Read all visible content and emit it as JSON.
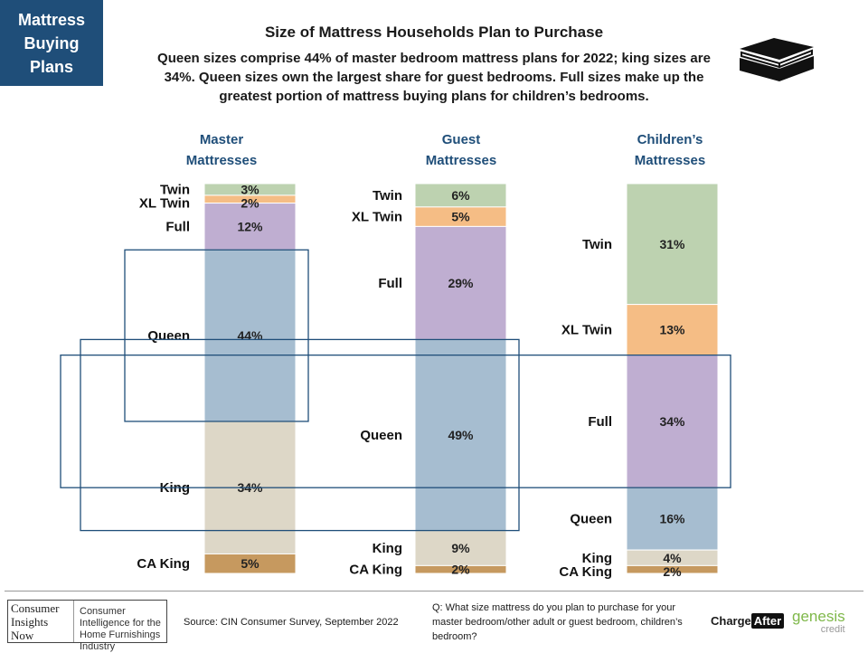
{
  "corner_label": "Mattress Buying Plans",
  "title": "Size of Mattress Households  Plan to Purchase",
  "subtitle": "Queen sizes comprise 44% of master bedroom mattress plans for 2022; king sizes are 34%. Queen sizes own the largest share for guest bedrooms. Full sizes make up the greatest portion of mattress buying plans for children’s bedrooms.",
  "icon": "mattress-icon",
  "chart_data": {
    "type": "bar",
    "stacked": true,
    "categories": [
      "Twin",
      "XL Twin",
      "Full",
      "Queen",
      "King",
      "CA King"
    ],
    "columns": [
      {
        "name": "Master Mattresses",
        "values": [
          3,
          2,
          12,
          44,
          34,
          5
        ],
        "labels": [
          "3%",
          "2%",
          "12%",
          "44%",
          "34%",
          "5%"
        ],
        "highlight": "Queen"
      },
      {
        "name": "Guest Mattresses",
        "values": [
          6,
          5,
          29,
          49,
          9,
          2
        ],
        "labels": [
          "6%",
          "5%",
          "29%",
          "49%",
          "9%",
          "2%"
        ],
        "highlight": "Queen"
      },
      {
        "name": "Children’s Mattresses",
        "values": [
          31,
          13,
          34,
          16,
          4,
          2
        ],
        "labels": [
          "31%",
          "13%",
          "34%",
          "16%",
          "4%",
          "2%"
        ],
        "highlight": "Full"
      }
    ],
    "colors": [
      "#bdd2b0",
      "#f5bd85",
      "#bfaed1",
      "#a6bdd0",
      "#ddd7c7",
      "#c6995f"
    ],
    "highlight_border": "#1f4e79"
  },
  "footer": {
    "source": "Source: CIN Consumer Survey, September  2022",
    "question": "Q: What size mattress do you plan to purchase for your master bedroom/other adult or guest bedroom, children’s bedroom?",
    "cin_logo_left": [
      "Consumer",
      "Insights",
      "Now"
    ],
    "cin_logo_right": "Consumer Intelligence for the Home Furnishings Industry",
    "chargeafter_a": "Charge",
    "chargeafter_b": "After",
    "genesis_a": "genesis",
    "genesis_b": "credit"
  }
}
